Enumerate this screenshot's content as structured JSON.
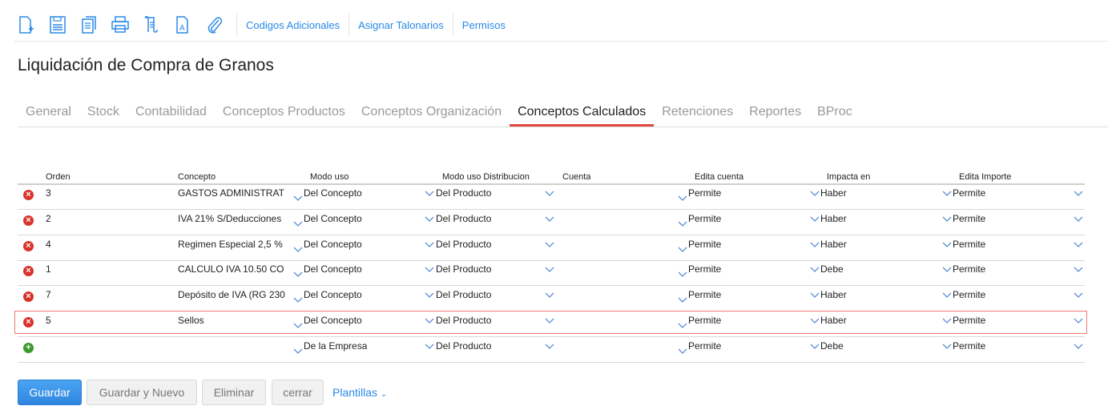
{
  "toolbar": {
    "icons": [
      "new-document-icon",
      "save-icon",
      "copy-document-icon",
      "print-icon",
      "scroll-document-icon",
      "document-text-icon",
      "paperclip-icon"
    ],
    "links": [
      "Codigos Adicionales",
      "Asignar Talonarios",
      "Permisos"
    ]
  },
  "page_title": "Liquidación de Compra de Granos",
  "tabs": [
    "General",
    "Stock",
    "Contabilidad",
    "Conceptos Productos",
    "Conceptos Organización",
    "Conceptos Calculados",
    "Retenciones",
    "Reportes",
    "BProc"
  ],
  "active_tab": "Conceptos Calculados",
  "table": {
    "columns": [
      "Orden",
      "Concepto",
      "Modo uso",
      "Modo uso Distribucion",
      "Cuenta",
      "Edita cuenta",
      "Impacta en",
      "Edita Importe"
    ],
    "rows": [
      {
        "orden": "3",
        "concepto": "GASTOS ADMINISTRAT",
        "modo_uso": "Del Concepto",
        "modo_dist": "Del Producto",
        "cuenta": "",
        "edita_cuenta": "Permite",
        "impacta": "Haber",
        "edita_importe": "Permite"
      },
      {
        "orden": "2",
        "concepto": "IVA 21% S/Deducciones",
        "modo_uso": "Del Concepto",
        "modo_dist": "Del Producto",
        "cuenta": "",
        "edita_cuenta": "Permite",
        "impacta": "Haber",
        "edita_importe": "Permite"
      },
      {
        "orden": "4",
        "concepto": "Regimen Especial 2,5 %",
        "modo_uso": "Del Concepto",
        "modo_dist": "Del Producto",
        "cuenta": "",
        "edita_cuenta": "Permite",
        "impacta": "Haber",
        "edita_importe": "Permite"
      },
      {
        "orden": "1",
        "concepto": "CALCULO IVA 10.50 CO",
        "modo_uso": "Del Concepto",
        "modo_dist": "Del Producto",
        "cuenta": "",
        "edita_cuenta": "Permite",
        "impacta": "Debe",
        "edita_importe": "Permite"
      },
      {
        "orden": "7",
        "concepto": "Depósito de IVA (RG 230",
        "modo_uso": "Del Concepto",
        "modo_dist": "Del Producto",
        "cuenta": "",
        "edita_cuenta": "Permite",
        "impacta": "Haber",
        "edita_importe": "Permite"
      },
      {
        "orden": "5",
        "concepto": "Sellos",
        "modo_uso": "Del Concepto",
        "modo_dist": "Del Producto",
        "cuenta": "",
        "edita_cuenta": "Permite",
        "impacta": "Haber",
        "edita_importe": "Permite",
        "selected": true
      }
    ],
    "new_row": {
      "orden": "",
      "concepto": "",
      "modo_uso": "De la Empresa",
      "modo_dist": "Del Producto",
      "cuenta": "",
      "edita_cuenta": "Permite",
      "impacta": "Debe",
      "edita_importe": "Permite"
    }
  },
  "buttons": {
    "guardar": "Guardar",
    "guardar_nuevo": "Guardar y Nuevo",
    "eliminar": "Eliminar",
    "cerrar": "cerrar",
    "plantillas": "Plantillas"
  },
  "colors": {
    "accent": "#2a8ae6",
    "tab_active": "#e2483d",
    "delete": "#d9342b",
    "add": "#3b9a2e",
    "selected_row_border": "#ec7a7a"
  }
}
